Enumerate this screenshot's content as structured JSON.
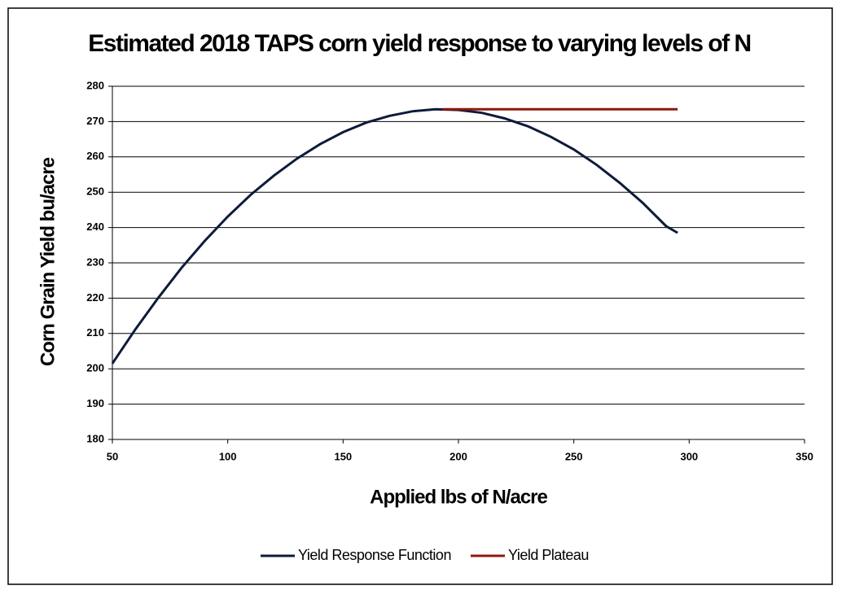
{
  "chart_data": {
    "type": "line",
    "title": "Estimated 2018 TAPS corn yield response to varying levels of N",
    "x_label": "Applied lbs of N/acre",
    "y_label": "Corn Grain Yield bu/acre",
    "xlim": [
      50,
      350
    ],
    "xticks": [
      50,
      100,
      150,
      200,
      250,
      300,
      350
    ],
    "ylim": [
      180,
      280
    ],
    "yticks": [
      180,
      190,
      200,
      210,
      220,
      230,
      240,
      250,
      260,
      270,
      280
    ],
    "grid": true,
    "legend": "bottom",
    "series": [
      {
        "name": "Yield Response Function",
        "color": "#0d1b3a",
        "x": [
          50,
          60,
          70,
          80,
          90,
          100,
          110,
          120,
          130,
          140,
          150,
          160,
          170,
          180,
          190,
          200,
          210,
          220,
          230,
          240,
          250,
          260,
          270,
          280,
          290,
          295
        ],
        "values": [
          201.5,
          211.2,
          220.2,
          228.6,
          236.2,
          243.1,
          249.3,
          254.7,
          259.5,
          263.6,
          267.0,
          269.7,
          271.6,
          272.9,
          273.5,
          273.3,
          272.5,
          270.9,
          268.7,
          265.7,
          262.1,
          257.7,
          252.6,
          246.9,
          240.4,
          238.5
        ]
      },
      {
        "name": "Yield Plateau",
        "color": "#8b1a0e",
        "x": [
          193,
          295
        ],
        "values": [
          273.5,
          273.5
        ]
      }
    ]
  }
}
